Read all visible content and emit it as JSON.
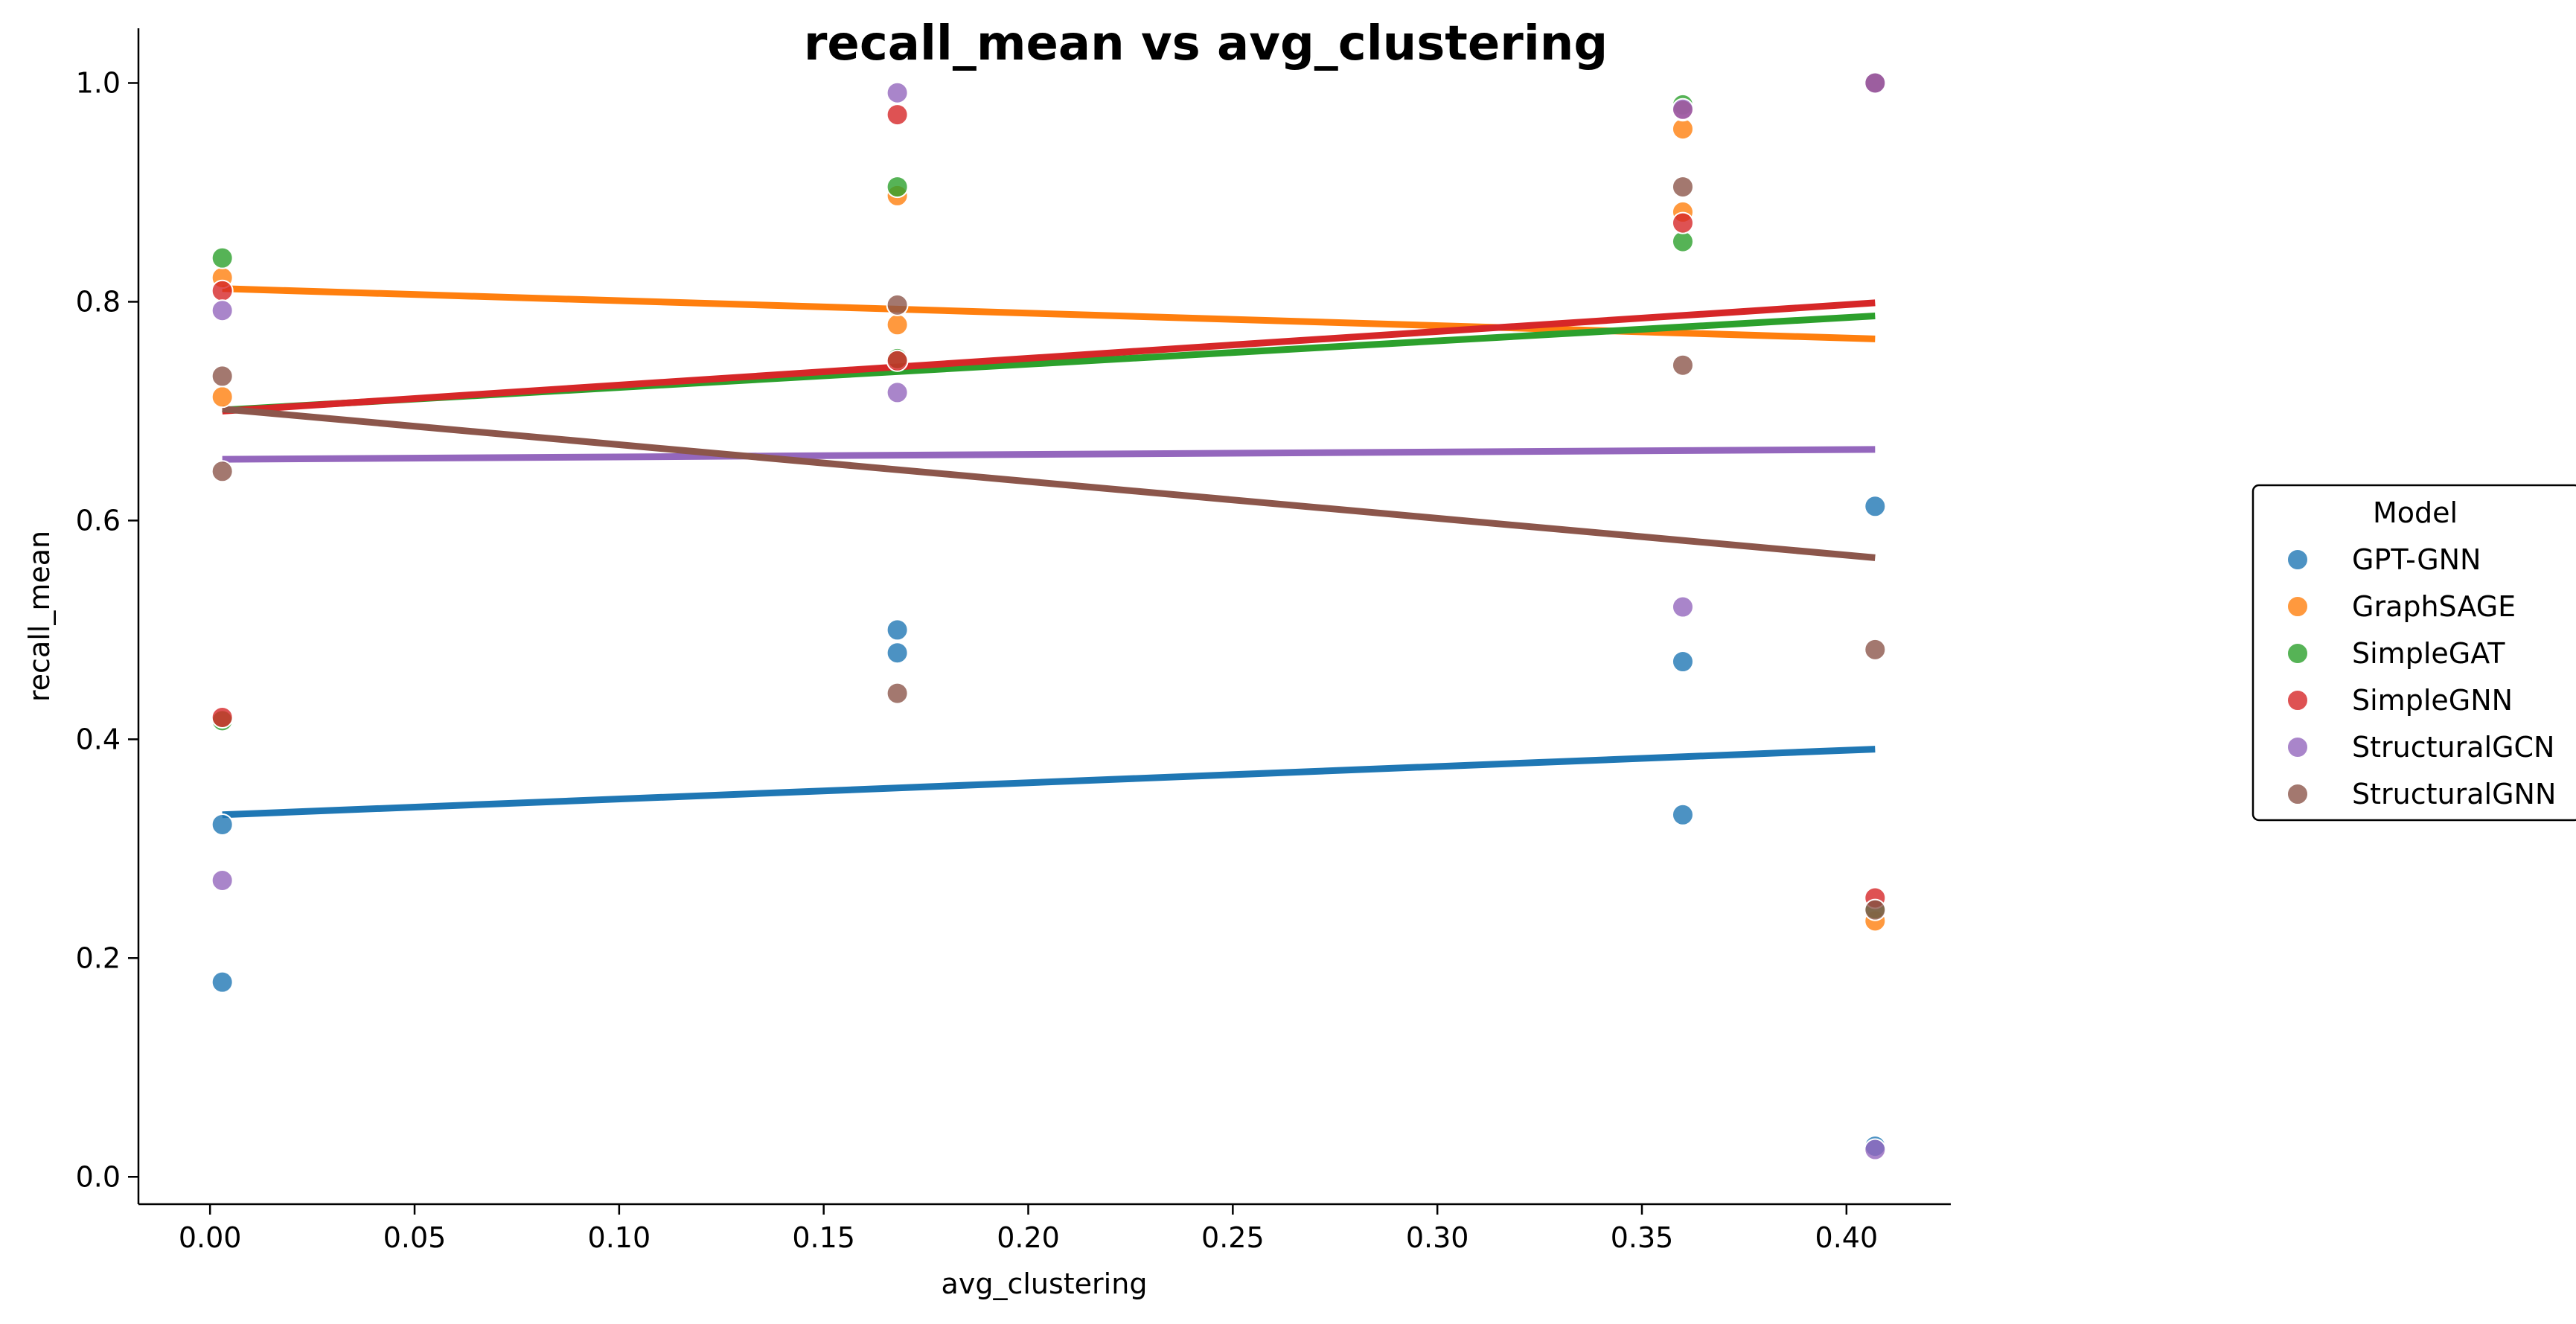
{
  "chart_data": {
    "type": "scatter",
    "title": "recall_mean vs avg_clustering",
    "xlabel": "avg_clustering",
    "ylabel": "recall_mean",
    "xlim": [
      -0.0175,
      0.4255
    ],
    "ylim": [
      -0.025,
      1.05
    ],
    "xticks": [
      0.0,
      0.05,
      0.1,
      0.15,
      0.2,
      0.25,
      0.3,
      0.35,
      0.4
    ],
    "xtick_labels": [
      "0.00",
      "0.05",
      "0.10",
      "0.15",
      "0.20",
      "0.25",
      "0.30",
      "0.35",
      "0.40"
    ],
    "yticks": [
      0.0,
      0.2,
      0.4,
      0.6,
      0.8,
      1.0
    ],
    "ytick_labels": [
      "0.0",
      "0.2",
      "0.4",
      "0.6",
      "0.8",
      "1.0"
    ],
    "grid": false,
    "legend": {
      "title": "Model",
      "placement": "right"
    },
    "series": [
      {
        "name": "GPT-GNN",
        "color": "#1f77b4",
        "points": [
          [
            0.003,
            0.322
          ],
          [
            0.003,
            0.178
          ],
          [
            0.168,
            0.5
          ],
          [
            0.168,
            0.479
          ],
          [
            0.36,
            0.471
          ],
          [
            0.36,
            0.331
          ],
          [
            0.407,
            0.613
          ],
          [
            0.407,
            0.028
          ]
        ],
        "fit": [
          [
            0.003,
            0.331
          ],
          [
            0.407,
            0.391
          ]
        ]
      },
      {
        "name": "GraphSAGE",
        "color": "#ff7f0e",
        "points": [
          [
            0.003,
            0.822
          ],
          [
            0.003,
            0.713
          ],
          [
            0.168,
            0.897
          ],
          [
            0.168,
            0.779
          ],
          [
            0.36,
            0.958
          ],
          [
            0.36,
            0.882
          ],
          [
            0.407,
            1.0
          ],
          [
            0.407,
            0.234
          ]
        ],
        "fit": [
          [
            0.003,
            0.812
          ],
          [
            0.407,
            0.766
          ]
        ]
      },
      {
        "name": "SimpleGAT",
        "color": "#2ca02c",
        "points": [
          [
            0.003,
            0.84
          ],
          [
            0.003,
            0.417
          ],
          [
            0.168,
            0.905
          ],
          [
            0.168,
            0.748
          ],
          [
            0.36,
            0.98
          ],
          [
            0.36,
            0.855
          ],
          [
            0.407,
            1.0
          ],
          [
            0.407,
            0.245
          ]
        ],
        "fit": [
          [
            0.003,
            0.701
          ],
          [
            0.407,
            0.787
          ]
        ]
      },
      {
        "name": "SimpleGNN",
        "color": "#d62728",
        "points": [
          [
            0.003,
            0.81
          ],
          [
            0.003,
            0.42
          ],
          [
            0.168,
            0.971
          ],
          [
            0.168,
            0.746
          ],
          [
            0.36,
            0.975
          ],
          [
            0.36,
            0.872
          ],
          [
            0.407,
            1.0
          ],
          [
            0.407,
            0.255
          ]
        ],
        "fit": [
          [
            0.003,
            0.7
          ],
          [
            0.407,
            0.799
          ]
        ]
      },
      {
        "name": "StructuralGCN",
        "color": "#9467bd",
        "points": [
          [
            0.003,
            0.792
          ],
          [
            0.003,
            0.271
          ],
          [
            0.168,
            0.991
          ],
          [
            0.168,
            0.717
          ],
          [
            0.36,
            0.976
          ],
          [
            0.36,
            0.521
          ],
          [
            0.407,
            1.0
          ],
          [
            0.407,
            0.025
          ]
        ],
        "fit": [
          [
            0.003,
            0.656
          ],
          [
            0.407,
            0.665
          ]
        ]
      },
      {
        "name": "StructuralGNN",
        "color": "#8c564b",
        "points": [
          [
            0.003,
            0.732
          ],
          [
            0.003,
            0.645
          ],
          [
            0.168,
            0.797
          ],
          [
            0.168,
            0.442
          ],
          [
            0.36,
            0.905
          ],
          [
            0.36,
            0.742
          ],
          [
            0.407,
            0.482
          ],
          [
            0.407,
            0.244
          ]
        ],
        "fit": [
          [
            0.003,
            0.702
          ],
          [
            0.407,
            0.566
          ]
        ]
      }
    ]
  }
}
